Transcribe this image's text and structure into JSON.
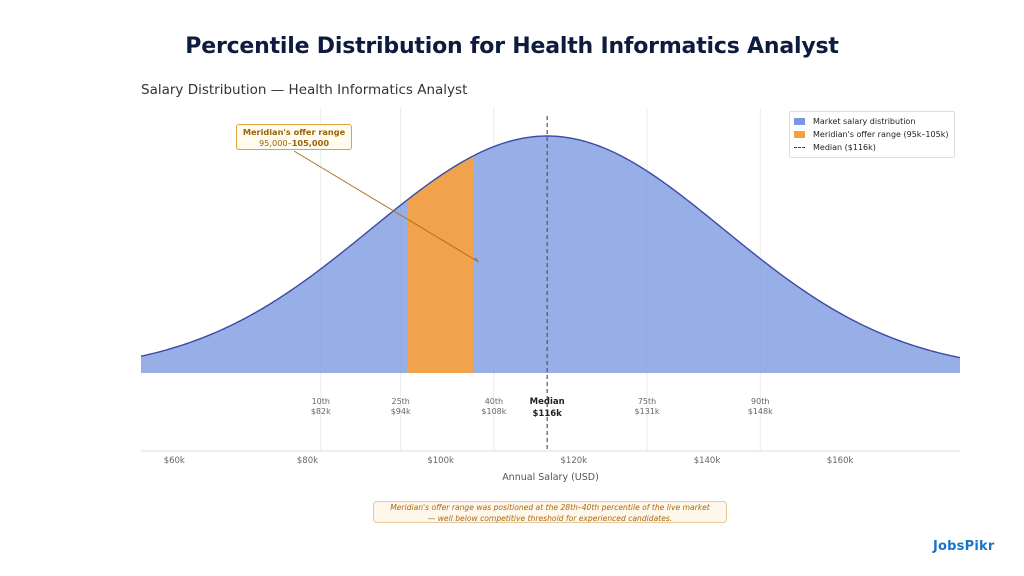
{
  "page": {
    "title": "Percentile Distribution for Health Informatics Analyst",
    "footnote_line1": "Meridian's offer range was positioned at the 28th–40th percentile of the live market",
    "footnote_line2": "— well below competitive threshold for experienced candidates.",
    "logo": "JobsPikr"
  },
  "colors": {
    "market": "#7b97e0",
    "market_line": "#3d4aa6",
    "offer": "#f4a143",
    "median_line": "#555555",
    "title": "#0d1b3e",
    "accent_text": "#9a6408"
  },
  "chart_data": {
    "type": "area",
    "title": "Salary Distribution — Health Informatics Analyst",
    "xlabel": "Annual Salary (USD)",
    "ylabel": "",
    "xlim": [
      55,
      178
    ],
    "distribution": {
      "kind": "normal",
      "mean": 116,
      "sd": 26.5
    },
    "x_ticks": [
      {
        "value": 60,
        "label": "$60k"
      },
      {
        "value": 80,
        "label": "$80k"
      },
      {
        "value": 100,
        "label": "$100k"
      },
      {
        "value": 120,
        "label": "$120k"
      },
      {
        "value": 140,
        "label": "$140k"
      },
      {
        "value": 160,
        "label": "$160k"
      }
    ],
    "offer_range": {
      "min": 95,
      "max": 105
    },
    "median": {
      "value": 116,
      "label_top": "Median",
      "label_bottom": "$116k"
    },
    "percentiles": [
      {
        "value": 82,
        "name": "10th",
        "label": "$82k"
      },
      {
        "value": 94,
        "name": "25th",
        "label": "$94k"
      },
      {
        "value": 108,
        "name": "40th",
        "label": "$108k"
      },
      {
        "value": 131,
        "name": "75th",
        "label": "$131k"
      },
      {
        "value": 148,
        "name": "90th",
        "label": "$148k"
      }
    ],
    "legend": [
      {
        "kind": "swatch",
        "color": "#7b97e0",
        "label": "Market salary distribution"
      },
      {
        "kind": "swatch",
        "color": "#f4a143",
        "label": "Meridian's offer range (95k–105k)"
      },
      {
        "kind": "dash",
        "color": "#444444",
        "label": "Median ($116k)"
      }
    ],
    "legend_position": "top-right",
    "annotation": {
      "title": "Meridian's offer range",
      "range_low": "95,000–",
      "range_high": "105,000",
      "arrow_to": {
        "x": 100,
        "density_fraction": 0.48
      }
    }
  }
}
